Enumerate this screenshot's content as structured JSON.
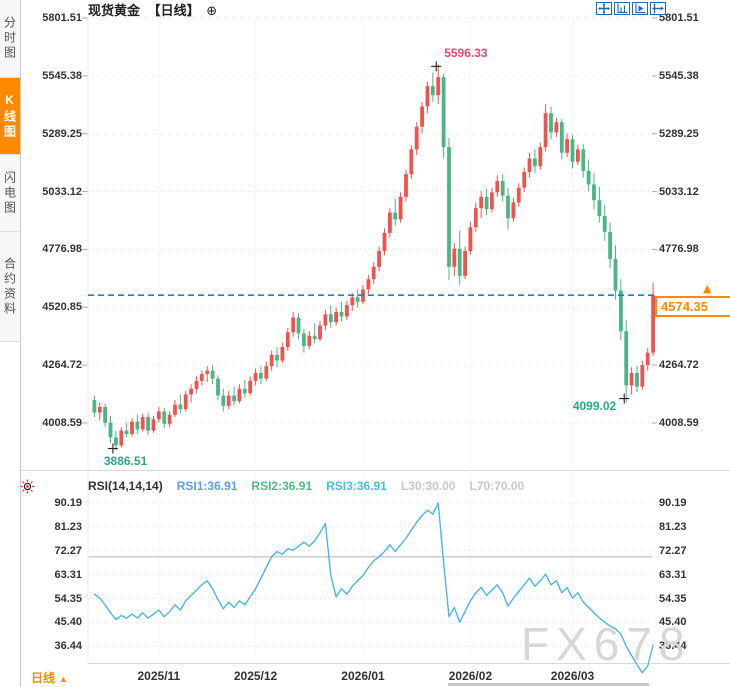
{
  "header": {
    "symbol": "现货黄金",
    "interval_tag": "【日线】",
    "add_icon": "⊕",
    "toolbar_icons": [
      "crosshair",
      "zoom-axis",
      "axis-play",
      "pan-right"
    ]
  },
  "sidebar": {
    "items": [
      {
        "label": "分时图",
        "active": false
      },
      {
        "label": "K线图",
        "active": true
      },
      {
        "label": "闪电图",
        "active": false
      },
      {
        "label": "合约资料",
        "active": false
      }
    ]
  },
  "icons": {
    "up_arrow": "▲"
  },
  "bottom": {
    "interval_label": "日线",
    "arrow": "▲"
  },
  "watermark": "FX678",
  "colors": {
    "up_candle": "#ef5350",
    "down_candle": "#4ab682",
    "high_label": "#e8496e",
    "low_label": "#2ba889",
    "last_price": "#ff8a00",
    "dashed_line": "#1f7ae0",
    "grid": "#e0e0e0",
    "level_line": "#b3b3b3",
    "rsi_line": "#4bb6e8",
    "axis_text": "#333333",
    "accent_orange": "#ff8a00",
    "toolbar_blue": "#2268b2"
  },
  "chart_data": [
    {
      "type": "candlestick",
      "title": "现货黄金 日线",
      "y_axis_labels": [
        5801.51,
        5545.38,
        5289.25,
        5033.12,
        4776.98,
        4520.85,
        4264.72,
        4008.59
      ],
      "x_tick_labels": [
        "2025/11",
        "2025/12",
        "2026/01",
        "2026/02",
        "2026/03"
      ],
      "x_tick_indices": [
        12,
        30,
        50,
        70,
        89
      ],
      "annotations": {
        "high": {
          "value": 5596.33,
          "index": 64
        },
        "low1": {
          "value": 3886.51,
          "index": 4
        },
        "low2": {
          "value": 4099.02,
          "index": 99
        },
        "last_price": 4574.35
      },
      "candles": [
        [
          4110,
          4130,
          4035,
          4055
        ],
        [
          4055,
          4100,
          4020,
          4080
        ],
        [
          4080,
          4095,
          3990,
          4010
        ],
        [
          4010,
          4040,
          3920,
          3945
        ],
        [
          3945,
          3975,
          3886.51,
          3910
        ],
        [
          3910,
          3990,
          3900,
          3975
        ],
        [
          3975,
          4010,
          3945,
          3960
        ],
        [
          3960,
          4030,
          3950,
          4015
        ],
        [
          4015,
          4045,
          3960,
          3980
        ],
        [
          3980,
          4050,
          3970,
          4035
        ],
        [
          4035,
          4055,
          3955,
          3975
        ],
        [
          3975,
          4040,
          3965,
          4025
        ],
        [
          4025,
          4080,
          4010,
          4060
        ],
        [
          4060,
          4075,
          3985,
          4005
        ],
        [
          4005,
          4060,
          3990,
          4045
        ],
        [
          4045,
          4110,
          4035,
          4090
        ],
        [
          4090,
          4135,
          4050,
          4070
        ],
        [
          4070,
          4150,
          4060,
          4135
        ],
        [
          4135,
          4180,
          4100,
          4160
        ],
        [
          4160,
          4215,
          4140,
          4195
        ],
        [
          4195,
          4240,
          4175,
          4225
        ],
        [
          4225,
          4260,
          4190,
          4240
        ],
        [
          4240,
          4265,
          4180,
          4205
        ],
        [
          4205,
          4220,
          4110,
          4130
        ],
        [
          4130,
          4160,
          4060,
          4085
        ],
        [
          4085,
          4150,
          4070,
          4130
        ],
        [
          4130,
          4170,
          4085,
          4105
        ],
        [
          4105,
          4180,
          4095,
          4160
        ],
        [
          4160,
          4200,
          4120,
          4140
        ],
        [
          4140,
          4215,
          4130,
          4195
        ],
        [
          4195,
          4250,
          4175,
          4230
        ],
        [
          4230,
          4260,
          4180,
          4205
        ],
        [
          4205,
          4280,
          4195,
          4260
        ],
        [
          4260,
          4330,
          4240,
          4310
        ],
        [
          4310,
          4345,
          4255,
          4285
        ],
        [
          4285,
          4365,
          4275,
          4345
        ],
        [
          4345,
          4430,
          4330,
          4410
        ],
        [
          4410,
          4500,
          4390,
          4475
        ],
        [
          4475,
          4495,
          4380,
          4405
        ],
        [
          4405,
          4425,
          4320,
          4350
        ],
        [
          4350,
          4415,
          4335,
          4395
        ],
        [
          4395,
          4450,
          4360,
          4380
        ],
        [
          4380,
          4460,
          4370,
          4440
        ],
        [
          4440,
          4510,
          4420,
          4490
        ],
        [
          4490,
          4530,
          4430,
          4455
        ],
        [
          4455,
          4520,
          4440,
          4500
        ],
        [
          4500,
          4545,
          4460,
          4480
        ],
        [
          4480,
          4550,
          4465,
          4530
        ],
        [
          4530,
          4585,
          4505,
          4565
        ],
        [
          4565,
          4600,
          4520,
          4545
        ],
        [
          4545,
          4620,
          4535,
          4600
        ],
        [
          4600,
          4665,
          4580,
          4645
        ],
        [
          4645,
          4720,
          4625,
          4700
        ],
        [
          4700,
          4790,
          4680,
          4770
        ],
        [
          4770,
          4870,
          4750,
          4850
        ],
        [
          4850,
          4960,
          4830,
          4940
        ],
        [
          4940,
          5000,
          4880,
          4910
        ],
        [
          4910,
          5030,
          4895,
          5010
        ],
        [
          5010,
          5130,
          4990,
          5110
        ],
        [
          5110,
          5240,
          5090,
          5220
        ],
        [
          5220,
          5340,
          5195,
          5320
        ],
        [
          5320,
          5430,
          5290,
          5410
        ],
        [
          5410,
          5520,
          5380,
          5500
        ],
        [
          5500,
          5560,
          5430,
          5460
        ],
        [
          5460,
          5596.33,
          5420,
          5540
        ],
        [
          5540,
          5555,
          5180,
          5230
        ],
        [
          5230,
          5270,
          4640,
          4700
        ],
        [
          4700,
          4805,
          4660,
          4780
        ],
        [
          4780,
          4860,
          4620,
          4660
        ],
        [
          4660,
          4790,
          4645,
          4770
        ],
        [
          4770,
          4900,
          4755,
          4875
        ],
        [
          4875,
          4985,
          4855,
          4960
        ],
        [
          4960,
          5035,
          4915,
          5010
        ],
        [
          5010,
          5045,
          4930,
          4955
        ],
        [
          4955,
          5050,
          4940,
          5030
        ],
        [
          5030,
          5105,
          5010,
          5080
        ],
        [
          5080,
          5110,
          4990,
          5015
        ],
        [
          5015,
          5050,
          4865,
          4915
        ],
        [
          4915,
          5005,
          4900,
          4985
        ],
        [
          4985,
          5070,
          4965,
          5050
        ],
        [
          5050,
          5140,
          5030,
          5120
        ],
        [
          5120,
          5205,
          5095,
          5180
        ],
        [
          5180,
          5220,
          5115,
          5145
        ],
        [
          5145,
          5250,
          5130,
          5230
        ],
        [
          5230,
          5420,
          5210,
          5380
        ],
        [
          5380,
          5410,
          5265,
          5295
        ],
        [
          5295,
          5360,
          5275,
          5340
        ],
        [
          5340,
          5355,
          5175,
          5205
        ],
        [
          5205,
          5290,
          5185,
          5265
        ],
        [
          5265,
          5285,
          5135,
          5165
        ],
        [
          5165,
          5240,
          5150,
          5220
        ],
        [
          5220,
          5245,
          5095,
          5125
        ],
        [
          5125,
          5175,
          5035,
          5065
        ],
        [
          5065,
          5115,
          4955,
          4995
        ],
        [
          4995,
          5055,
          4895,
          4925
        ],
        [
          4925,
          4975,
          4815,
          4855
        ],
        [
          4855,
          4895,
          4695,
          4735
        ],
        [
          4735,
          4795,
          4555,
          4595
        ],
        [
          4595,
          4645,
          4375,
          4415
        ],
        [
          4415,
          4465,
          4099.02,
          4175
        ],
        [
          4175,
          4255,
          4135,
          4230
        ],
        [
          4230,
          4260,
          4145,
          4170
        ],
        [
          4170,
          4285,
          4155,
          4265
        ],
        [
          4265,
          4340,
          4240,
          4320
        ],
        [
          4320,
          4630,
          4305,
          4574.35
        ]
      ]
    },
    {
      "type": "line",
      "name": "RSI(14,14,14)",
      "legend": [
        {
          "label": "RSI1:36.91",
          "color": "#5b9cf5"
        },
        {
          "label": "RSI2:36.91",
          "color": "#51ba81"
        },
        {
          "label": "RSI3:36.91",
          "color": "#45c0e0"
        },
        {
          "label": "L30:30.00",
          "color": "#c8c8c8"
        },
        {
          "label": "L70:70.00",
          "color": "#c8c8c8"
        }
      ],
      "y_axis_labels": [
        90.19,
        81.23,
        72.27,
        63.31,
        54.35,
        45.4,
        36.44
      ],
      "levels": [
        70,
        30
      ],
      "values": [
        56,
        54.5,
        52,
        49,
        46.5,
        48,
        47,
        48.5,
        47,
        49,
        47,
        48.5,
        50,
        47.5,
        49.5,
        52,
        50,
        53.5,
        55.5,
        57.5,
        59.5,
        61,
        58,
        54,
        50.5,
        53,
        51,
        53.5,
        52,
        55,
        58,
        62,
        66,
        70,
        72,
        71,
        73,
        72.5,
        74,
        75.5,
        74,
        76,
        79,
        82.5,
        63,
        55,
        58,
        56,
        59,
        61,
        63,
        66,
        68.5,
        70,
        72,
        74.5,
        72,
        74.5,
        77,
        80,
        83,
        85.5,
        87.5,
        86,
        90.19,
        68,
        47.5,
        51,
        45.5,
        49.5,
        53.5,
        56.5,
        58.5,
        55.5,
        57.5,
        59.5,
        56.5,
        51.5,
        54.5,
        57,
        59.5,
        62,
        59,
        61,
        63.5,
        59.5,
        61,
        56.5,
        58.5,
        54.5,
        56.5,
        53,
        51,
        49,
        47,
        45.5,
        44,
        43,
        41,
        36.5,
        33,
        29.5,
        26.5,
        29,
        36.91
      ]
    }
  ]
}
